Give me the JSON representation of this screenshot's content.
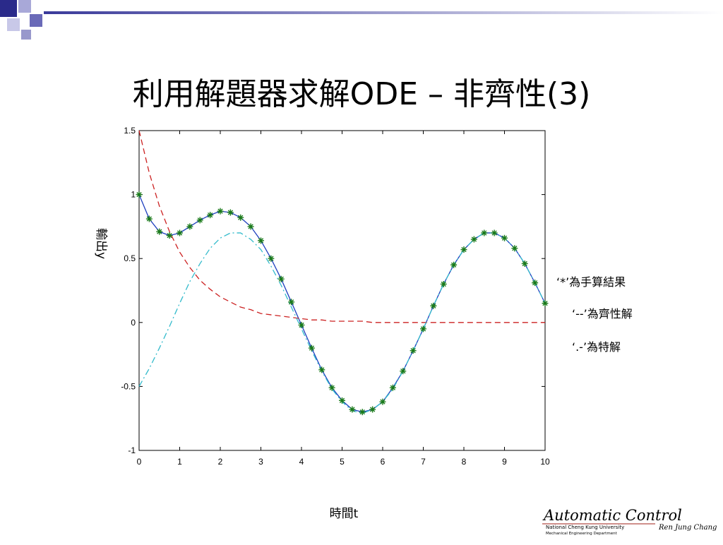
{
  "slide_title": "利用解題器求解ODE – 非齊性(3)",
  "footer": {
    "logo": "Automatic Control",
    "university": "National Cheng Kung University",
    "department": "Mechanical Engineering Department",
    "author": "Ren Jung Chang"
  },
  "chart_data": {
    "type": "line",
    "xlabel": "時間t",
    "ylabel": "輸出y",
    "xlim": [
      0,
      10
    ],
    "ylim": [
      -1,
      1.5
    ],
    "xticks": [
      0,
      1,
      2,
      3,
      4,
      5,
      6,
      7,
      8,
      9,
      10
    ],
    "yticks": [
      -1,
      -0.5,
      0,
      0.5,
      1,
      1.5
    ],
    "grid": false,
    "annotations": [
      "‘*’為手算結果",
      "‘--’為齊性解",
      "‘.-’為特解"
    ],
    "x": [
      0,
      0.25,
      0.5,
      0.75,
      1,
      1.25,
      1.5,
      1.75,
      2,
      2.25,
      2.5,
      2.75,
      3,
      3.25,
      3.5,
      3.75,
      4,
      4.25,
      4.5,
      4.75,
      5,
      5.25,
      5.5,
      5.75,
      6,
      6.25,
      6.5,
      6.75,
      7,
      7.25,
      7.5,
      7.75,
      8,
      8.25,
      8.5,
      8.75,
      9,
      9.25,
      9.5,
      9.75,
      10
    ],
    "series": [
      {
        "color": "#1f3fbf",
        "line_style": "solid",
        "marker": "star",
        "marker_color": "#1a7a1a",
        "values": [
          1.0,
          0.81,
          0.71,
          0.68,
          0.7,
          0.75,
          0.8,
          0.84,
          0.87,
          0.86,
          0.82,
          0.75,
          0.64,
          0.5,
          0.34,
          0.16,
          -0.02,
          -0.2,
          -0.37,
          -0.51,
          -0.61,
          -0.68,
          -0.7,
          -0.68,
          -0.62,
          -0.51,
          -0.38,
          -0.22,
          -0.05,
          0.13,
          0.3,
          0.45,
          0.57,
          0.65,
          0.7,
          0.7,
          0.66,
          0.58,
          0.46,
          0.31,
          0.15
        ]
      },
      {
        "color": "#cc2222",
        "line_style": "dashed",
        "values": [
          1.5,
          1.17,
          0.91,
          0.71,
          0.55,
          0.43,
          0.33,
          0.26,
          0.2,
          0.16,
          0.12,
          0.1,
          0.07,
          0.06,
          0.05,
          0.04,
          0.03,
          0.02,
          0.02,
          0.01,
          0.01,
          0.01,
          0.01,
          0,
          0,
          0,
          0,
          0,
          0,
          0,
          0,
          0,
          0,
          0,
          0,
          0,
          0,
          0,
          0,
          0,
          0
        ]
      },
      {
        "color": "#33bbcc",
        "line_style": "dashdot",
        "values": [
          -0.5,
          -0.36,
          -0.2,
          -0.03,
          0.15,
          0.32,
          0.46,
          0.58,
          0.66,
          0.7,
          0.7,
          0.65,
          0.57,
          0.44,
          0.29,
          0.12,
          -0.05,
          -0.22,
          -0.38,
          -0.52,
          -0.62,
          -0.69,
          -0.71,
          -0.68,
          -0.62,
          -0.52,
          -0.38,
          -0.22,
          -0.05,
          0.13,
          0.3,
          0.45,
          0.57,
          0.65,
          0.7,
          0.7,
          0.66,
          0.58,
          0.46,
          0.31,
          0.15
        ]
      }
    ]
  }
}
